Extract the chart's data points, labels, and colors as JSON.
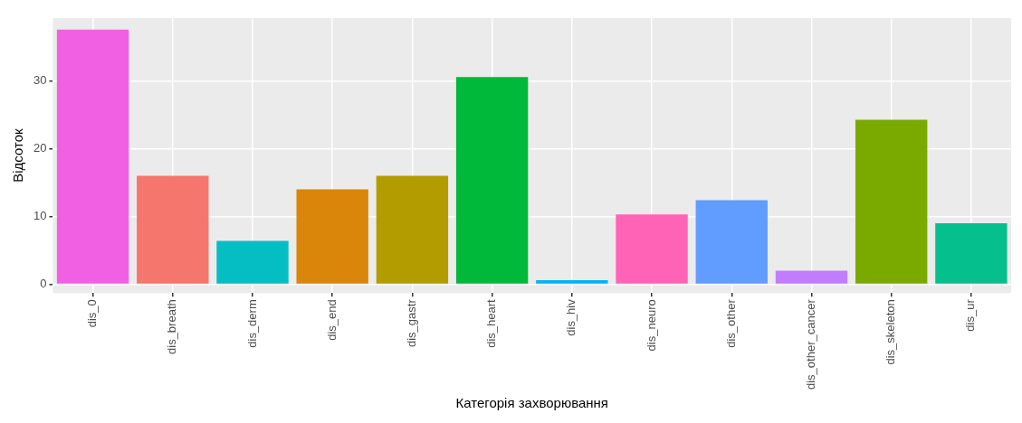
{
  "chart_data": {
    "type": "bar",
    "xlabel": "Категорія захворювання",
    "ylabel": "Відсоток",
    "categories": [
      "dis_0",
      "dis_breath",
      "dis_derm",
      "dis_end",
      "dis_gastr",
      "dis_heart",
      "dis_hiv",
      "dis_neuro",
      "dis_other",
      "dis_other_cancer",
      "dis_skeleton",
      "dis_ur"
    ],
    "values": [
      37.6,
      16.0,
      6.4,
      14.0,
      16.0,
      30.6,
      0.6,
      10.3,
      12.4,
      2.0,
      24.3,
      9.0
    ],
    "colors": [
      "#f160e3",
      "#f4766c",
      "#05bec4",
      "#d9860b",
      "#b29c00",
      "#00b93a",
      "#00b4ef",
      "#ff63b6",
      "#619cff",
      "#c27cff",
      "#7aaa00",
      "#05c08c"
    ],
    "ylim": [
      -1.3,
      39.3
    ],
    "yticks": [
      0,
      10,
      20,
      30
    ],
    "grid": true,
    "legend": false
  }
}
